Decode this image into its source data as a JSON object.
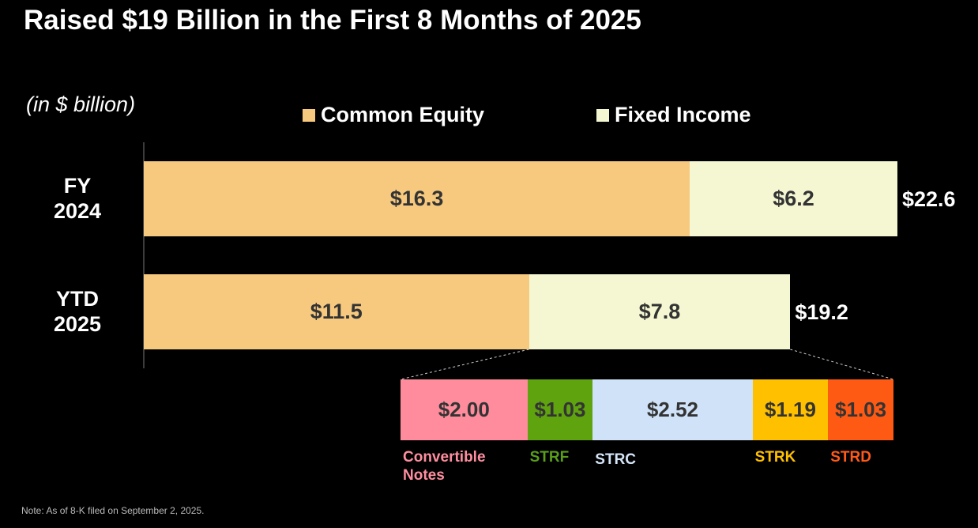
{
  "chart_data": [
    {
      "type": "stacked-bar-horizontal",
      "title": "Raised $19 Billion in the First 8 Months of 2025",
      "subtitle": "(in $ billion)",
      "categories": [
        "FY 2024",
        "YTD 2025"
      ],
      "series": [
        {
          "name": "Common Equity",
          "color": "#f7c97e",
          "values": [
            16.3,
            11.5
          ],
          "value_labels": [
            "$16.3",
            "$11.5"
          ]
        },
        {
          "name": "Fixed Income",
          "color": "#f5f7d2",
          "values": [
            6.2,
            7.8
          ],
          "value_labels": [
            "$6.2",
            "$7.8"
          ]
        }
      ],
      "totals": [
        22.6,
        19.2
      ],
      "total_labels": [
        "$22.6",
        "$19.2"
      ],
      "note": "Note: As of 8-K filed on September 2, 2025."
    },
    {
      "type": "breakdown-bar",
      "categories": [
        "Convertible Notes",
        "STRF",
        "STRC",
        "STRK",
        "STRD"
      ],
      "values": [
        2.0,
        1.03,
        2.52,
        1.19,
        1.03
      ],
      "value_labels": [
        "$2.00",
        "$1.03",
        "$2.52",
        "$1.19",
        "$1.03"
      ],
      "colors": [
        "#ff8c9c",
        "#5fa30f",
        "#cfe2f7",
        "#ffc000",
        "#ff5a14"
      ],
      "label_colors": [
        "#ff8fa0",
        "#5a9e1a",
        "#d6e6f8",
        "#ffc000",
        "#ff5a1a"
      ]
    }
  ]
}
